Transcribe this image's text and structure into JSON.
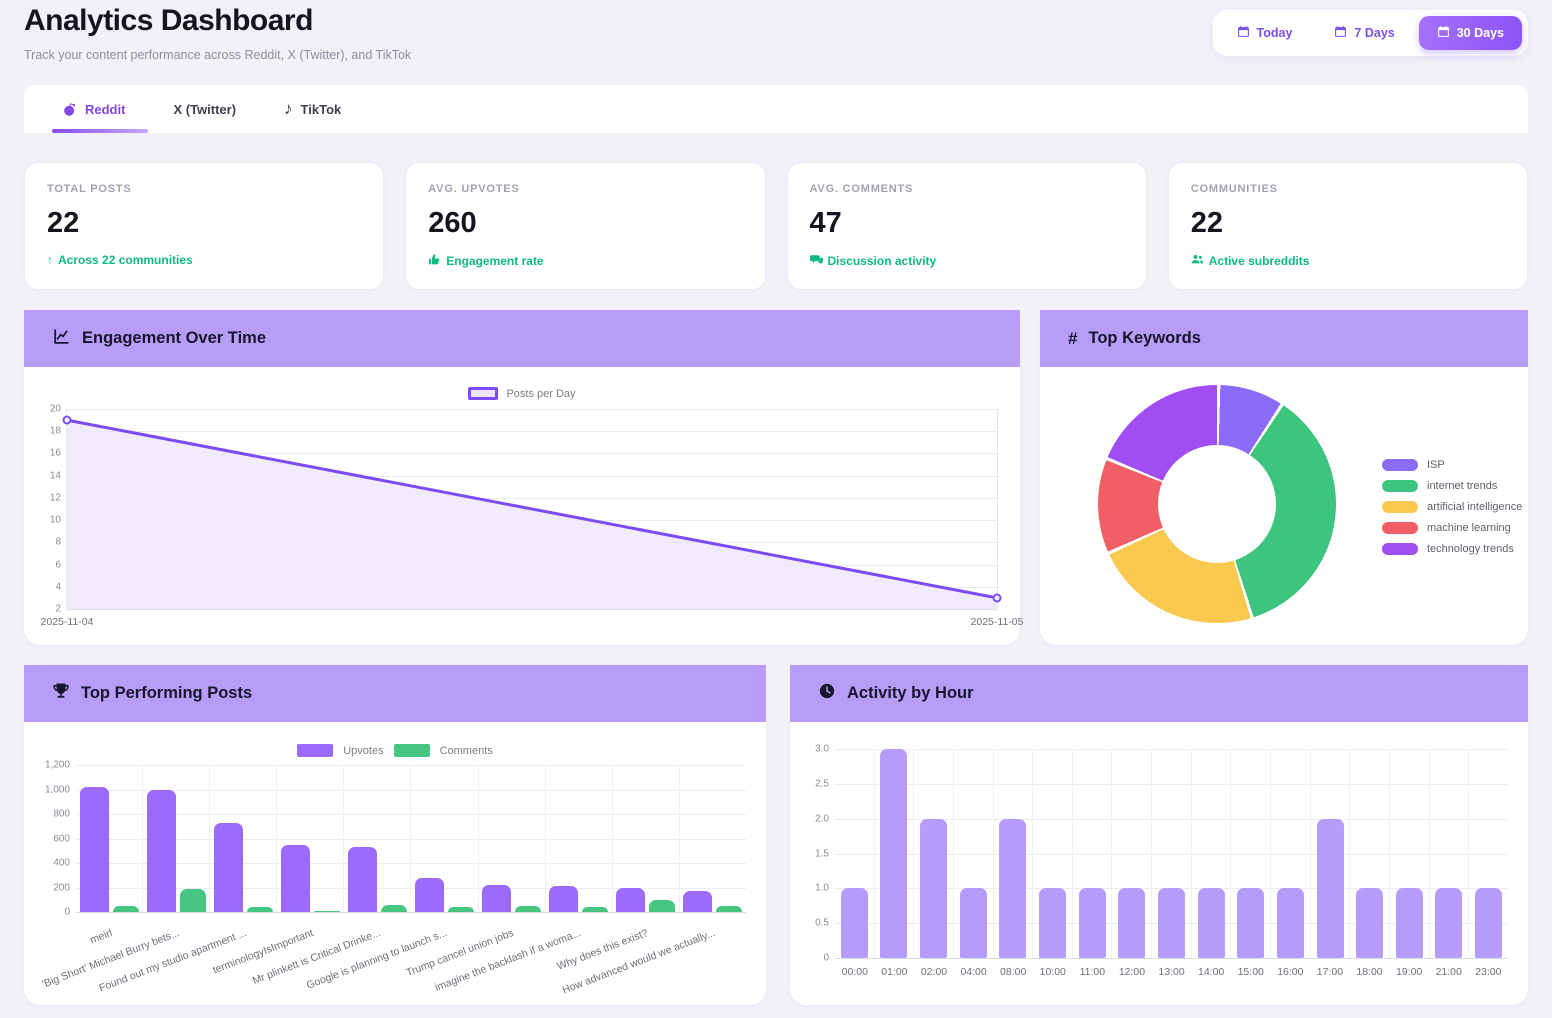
{
  "header": {
    "title": "Analytics Dashboard",
    "subtitle": "Track your content performance across Reddit, X (Twitter), and TikTok",
    "time_ranges": [
      {
        "label": "Today",
        "active": false
      },
      {
        "label": "7 Days",
        "active": false
      },
      {
        "label": "30 Days",
        "active": true
      }
    ]
  },
  "tabs": [
    {
      "label": "Reddit",
      "icon": "reddit-icon",
      "active": true
    },
    {
      "label": "X (Twitter)",
      "icon": null,
      "active": false
    },
    {
      "label": "TikTok",
      "icon": "tiktok-icon",
      "active": false
    }
  ],
  "stats": [
    {
      "label": "TOTAL POSTS",
      "value": "22",
      "sub": "Across 22 communities",
      "sub_icon": "arrow-up-icon"
    },
    {
      "label": "AVG. UPVOTES",
      "value": "260",
      "sub": "Engagement rate",
      "sub_icon": "thumbs-up-icon"
    },
    {
      "label": "AVG. COMMENTS",
      "value": "47",
      "sub": "Discussion activity",
      "sub_icon": "comments-icon"
    },
    {
      "label": "COMMUNITIES",
      "value": "22",
      "sub": "Active subreddits",
      "sub_icon": "users-icon"
    }
  ],
  "panels": {
    "engagement": {
      "title": "Engagement Over Time",
      "icon": "line-chart-icon"
    },
    "keywords": {
      "title": "Top Keywords",
      "icon": "hash-icon",
      "hash_glyph": "#"
    },
    "top_posts": {
      "title": "Top Performing Posts",
      "icon": "trophy-icon"
    },
    "activity": {
      "title": "Activity by Hour",
      "icon": "clock-icon"
    }
  },
  "colors": {
    "accent_purple": "#7a4ff0",
    "panel_header": "#b79cf8",
    "line_purple": "#7b4cf6",
    "area_fill": "#ece4fb",
    "upvotes_bar": "#9c6bfb",
    "comments_bar": "#46c681",
    "activity_bar": "#b59cf8",
    "positive_green": "#10b981"
  },
  "chart_data": [
    {
      "id": "engagement",
      "type": "area",
      "title": "Engagement Over Time",
      "legend": [
        "Posts per Day"
      ],
      "x": [
        "2025-11-04",
        "2025-11-05"
      ],
      "values": [
        19,
        3
      ],
      "ylim": [
        2,
        20
      ],
      "yticks": [
        20,
        18,
        16,
        14,
        12,
        10,
        8,
        6,
        4,
        2
      ],
      "line_color": "#7b4cf6",
      "fill_color": "#ece4fb",
      "grid": true,
      "legend_position": "top"
    },
    {
      "id": "keywords",
      "type": "pie",
      "title": "Top Keywords",
      "donut": true,
      "labels": [
        "ISP",
        "internet trends",
        "artificial intelligence",
        "machine learning",
        "technology trends"
      ],
      "values": [
        9,
        36,
        23,
        13,
        19
      ],
      "colors": [
        "#8b6cf7",
        "#3dc47e",
        "#f8c94e",
        "#ef5f65",
        "#a04ef2"
      ],
      "legend_position": "right"
    },
    {
      "id": "top_posts",
      "type": "bar",
      "title": "Top Performing Posts",
      "categories": [
        "meirl",
        "'Big Short' Michael Burry bets...",
        "Found out my studio apartment ...",
        "terminologyIsImportant",
        "Mr plinkett is Critical Drinke...",
        "Google is planning to launch s...",
        "Trump cancel union jobs",
        "imagine the backlash if a woma...",
        "Why does this exist?",
        "How advanced would we actually..."
      ],
      "series": [
        {
          "name": "Upvotes",
          "color": "#9c6bfb",
          "values": [
            1020,
            1000,
            730,
            550,
            530,
            275,
            220,
            210,
            200,
            170
          ]
        },
        {
          "name": "Comments",
          "color": "#46c681",
          "values": [
            50,
            190,
            40,
            10,
            55,
            40,
            50,
            45,
            95,
            50
          ]
        }
      ],
      "ylim": [
        0,
        1200
      ],
      "yticks": [
        "1,200",
        "1,000",
        "800",
        "600",
        "400",
        "200",
        "0"
      ],
      "grid": true,
      "legend_position": "top"
    },
    {
      "id": "activity",
      "type": "bar",
      "title": "Activity by Hour",
      "categories": [
        "00:00",
        "01:00",
        "02:00",
        "04:00",
        "08:00",
        "10:00",
        "11:00",
        "12:00",
        "13:00",
        "14:00",
        "15:00",
        "16:00",
        "17:00",
        "18:00",
        "19:00",
        "21:00",
        "23:00"
      ],
      "values": [
        1,
        3,
        2,
        1,
        2,
        1,
        1,
        1,
        1,
        1,
        1,
        1,
        2,
        1,
        1,
        1,
        1
      ],
      "color": "#b59cf8",
      "ylim": [
        0,
        3
      ],
      "yticks": [
        "3.0",
        "2.5",
        "2.0",
        "1.5",
        "1.0",
        "0.5",
        "0"
      ],
      "grid": true,
      "legend_position": "none"
    }
  ]
}
